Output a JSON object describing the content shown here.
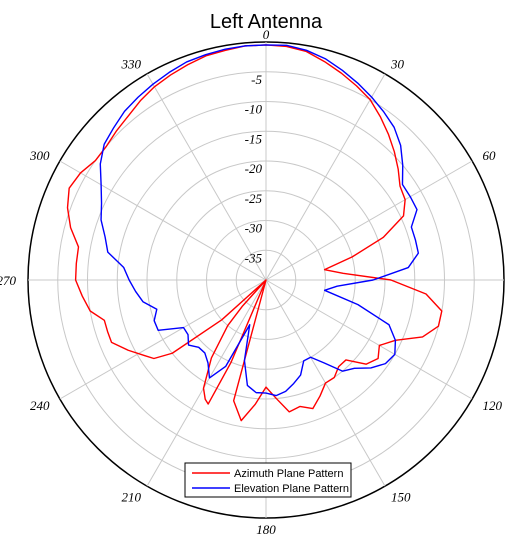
{
  "chart_data": {
    "type": "polar-line",
    "title": "Left Antenna",
    "angle_direction": "clockwise",
    "zero_at": "top",
    "angle_ticks": [
      0,
      30,
      60,
      90,
      120,
      150,
      180,
      210,
      240,
      270,
      300,
      330
    ],
    "angle_tick_labels": [
      "0",
      "30",
      "60",
      "90",
      "120",
      "150",
      "180",
      "210",
      "240",
      "270",
      "300",
      "330"
    ],
    "r_range": [
      -40,
      0
    ],
    "r_ticks": [
      0,
      -5,
      -10,
      -15,
      -20,
      -25,
      -30,
      -35
    ],
    "r_tick_labels": [
      "0",
      "-5",
      "-10",
      "-15",
      "-20",
      "-25",
      "-30",
      "-35"
    ],
    "r_grid": [
      -5,
      -10,
      -15,
      -20,
      -25,
      -30,
      -35
    ],
    "grid": true,
    "legend_position": "bottom-center",
    "series": [
      {
        "name": "Azimuth Plane Pattern",
        "color": "#ff0000",
        "points": [
          [
            0,
            -0.5
          ],
          [
            5,
            -0.6
          ],
          [
            10,
            -1
          ],
          [
            15,
            -2
          ],
          [
            20,
            -3
          ],
          [
            25,
            -4
          ],
          [
            30,
            -5
          ],
          [
            35,
            -6.5
          ],
          [
            40,
            -8
          ],
          [
            45,
            -9.5
          ],
          [
            50,
            -11
          ],
          [
            55,
            -12.5
          ],
          [
            60,
            -13
          ],
          [
            65,
            -14.5
          ],
          [
            70,
            -19
          ],
          [
            75,
            -25
          ],
          [
            80,
            -30
          ],
          [
            85,
            -27
          ],
          [
            90,
            -19
          ],
          [
            95,
            -13
          ],
          [
            100,
            -10
          ],
          [
            105,
            -10
          ],
          [
            110,
            -12
          ],
          [
            115,
            -16
          ],
          [
            120,
            -18
          ],
          [
            125,
            -17
          ],
          [
            130,
            -18
          ],
          [
            135,
            -21
          ],
          [
            140,
            -21
          ],
          [
            145,
            -20
          ],
          [
            150,
            -20
          ],
          [
            155,
            -18.5
          ],
          [
            160,
            -17
          ],
          [
            165,
            -18
          ],
          [
            170,
            -17.5
          ],
          [
            175,
            -20
          ],
          [
            180,
            -22
          ],
          [
            185,
            -19
          ],
          [
            190,
            -16
          ],
          [
            195,
            -19
          ],
          [
            200,
            -40
          ],
          [
            203,
            -25
          ],
          [
            205,
            -17
          ],
          [
            207,
            -17.5
          ],
          [
            210,
            -19
          ],
          [
            215,
            -24
          ],
          [
            220,
            -30
          ],
          [
            222,
            -34
          ],
          [
            224,
            -40
          ],
          [
            228,
            -30
          ],
          [
            232,
            -20
          ],
          [
            235,
            -17
          ],
          [
            238,
            -16
          ],
          [
            243,
            -14
          ],
          [
            248,
            -12
          ],
          [
            252,
            -12
          ],
          [
            256,
            -12
          ],
          [
            260,
            -10
          ],
          [
            265,
            -9
          ],
          [
            270,
            -8
          ],
          [
            275,
            -8
          ],
          [
            280,
            -8
          ],
          [
            285,
            -6
          ],
          [
            290,
            -4.5
          ],
          [
            295,
            -3.5
          ],
          [
            300,
            -4
          ],
          [
            305,
            -5
          ],
          [
            310,
            -5
          ],
          [
            315,
            -4.5
          ],
          [
            320,
            -4
          ],
          [
            325,
            -3.2
          ],
          [
            330,
            -2.5
          ],
          [
            335,
            -2
          ],
          [
            340,
            -1.5
          ],
          [
            345,
            -1
          ],
          [
            350,
            -0.8
          ],
          [
            355,
            -0.5
          ],
          [
            360,
            -0.5
          ]
        ]
      },
      {
        "name": "Elevation Plane Pattern",
        "color": "#0000ff",
        "points": [
          [
            0,
            -0.5
          ],
          [
            5,
            -0.4
          ],
          [
            10,
            -0.8
          ],
          [
            15,
            -1.5
          ],
          [
            20,
            -2.5
          ],
          [
            25,
            -3.5
          ],
          [
            30,
            -4.5
          ],
          [
            35,
            -5.5
          ],
          [
            40,
            -6.5
          ],
          [
            45,
            -8
          ],
          [
            50,
            -10
          ],
          [
            55,
            -12
          ],
          [
            60,
            -12
          ],
          [
            65,
            -12
          ],
          [
            70,
            -14
          ],
          [
            75,
            -14
          ],
          [
            80,
            -14
          ],
          [
            85,
            -16
          ],
          [
            90,
            -22
          ],
          [
            95,
            -28
          ],
          [
            100,
            -30
          ],
          [
            105,
            -24
          ],
          [
            110,
            -18
          ],
          [
            115,
            -16
          ],
          [
            120,
            -15
          ],
          [
            125,
            -15.5
          ],
          [
            130,
            -17
          ],
          [
            135,
            -19
          ],
          [
            140,
            -20
          ],
          [
            145,
            -23
          ],
          [
            150,
            -25
          ],
          [
            155,
            -25
          ],
          [
            160,
            -23
          ],
          [
            165,
            -22
          ],
          [
            170,
            -21
          ],
          [
            175,
            -20.5
          ],
          [
            180,
            -21
          ],
          [
            185,
            -21
          ],
          [
            190,
            -22
          ],
          [
            195,
            -26
          ],
          [
            200,
            -32
          ],
          [
            205,
            -24
          ],
          [
            210,
            -21
          ],
          [
            215,
            -23
          ],
          [
            220,
            -24
          ],
          [
            225,
            -24
          ],
          [
            230,
            -23
          ],
          [
            235,
            -24
          ],
          [
            240,
            -24
          ],
          [
            245,
            -20
          ],
          [
            250,
            -20
          ],
          [
            255,
            -21
          ],
          [
            260,
            -19
          ],
          [
            265,
            -18
          ],
          [
            270,
            -17
          ],
          [
            275,
            -16
          ],
          [
            280,
            -13
          ],
          [
            285,
            -12
          ],
          [
            290,
            -10.5
          ],
          [
            295,
            -9.5
          ],
          [
            300,
            -8
          ],
          [
            305,
            -6
          ],
          [
            310,
            -4.5
          ],
          [
            315,
            -3.8
          ],
          [
            320,
            -3
          ],
          [
            325,
            -2.5
          ],
          [
            330,
            -2
          ],
          [
            335,
            -1.5
          ],
          [
            340,
            -1
          ],
          [
            345,
            -0.8
          ],
          [
            350,
            -0.6
          ],
          [
            355,
            -0.5
          ],
          [
            360,
            -0.5
          ]
        ]
      }
    ]
  }
}
